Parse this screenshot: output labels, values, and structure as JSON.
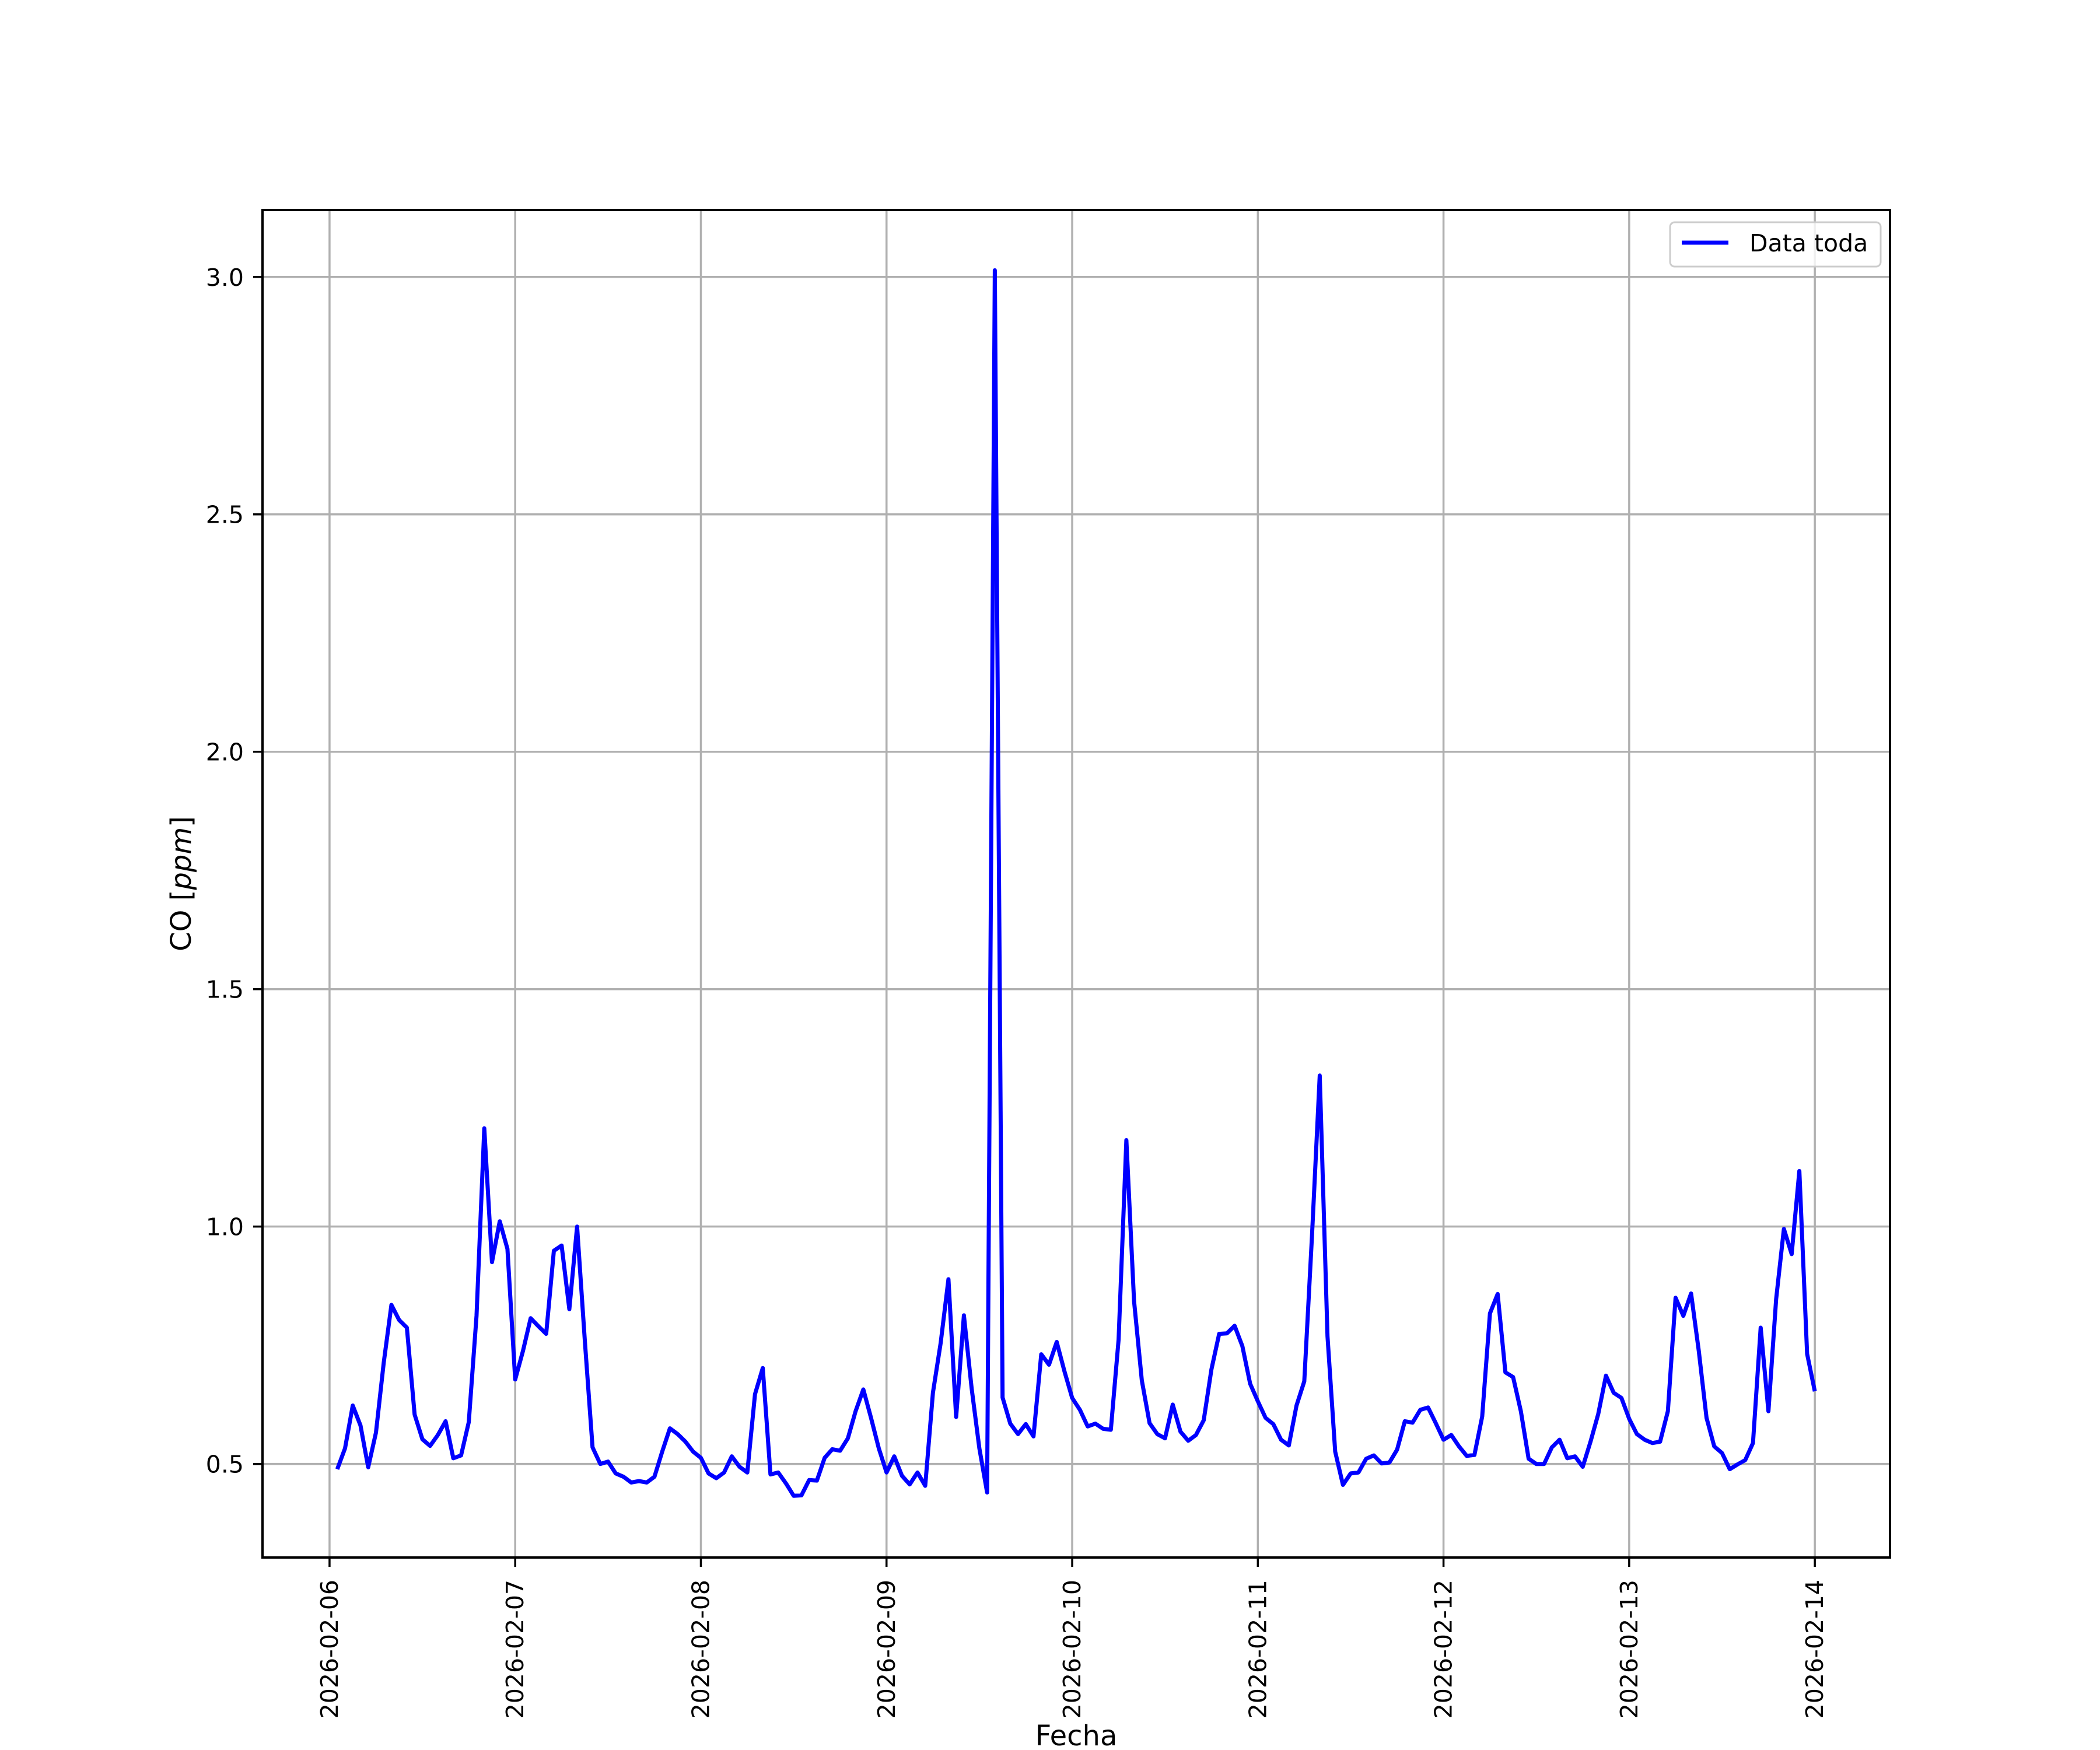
{
  "chart_data": {
    "type": "line",
    "title": "",
    "xlabel": "Fecha",
    "ylabel": "CO [ppm]",
    "ylabel_parts": {
      "plain": "CO [",
      "italic": "ppm",
      "close": "]"
    },
    "xlim": [
      "2026-02-05T15:20",
      "2026-02-14T09:43"
    ],
    "ylim": [
      0.303,
      3.141
    ],
    "grid": true,
    "legend_position": "top-right",
    "x_ticks": [
      "2026-02-06",
      "2026-02-07",
      "2026-02-08",
      "2026-02-09",
      "2026-02-10",
      "2026-02-11",
      "2026-02-12",
      "2026-02-13",
      "2026-02-14"
    ],
    "y_ticks": [
      0.5,
      1.0,
      1.5,
      2.0,
      2.5,
      3.0
    ],
    "y_tick_labels": [
      "0.5",
      "1.0",
      "1.5",
      "2.0",
      "2.5",
      "3.0"
    ],
    "series": [
      {
        "name": "Data toda",
        "color": "#0000ff",
        "x": [
          "2026-02-06T01:00",
          "2026-02-06T02:00",
          "2026-02-06T03:00",
          "2026-02-06T04:00",
          "2026-02-06T05:00",
          "2026-02-06T06:00",
          "2026-02-06T07:00",
          "2026-02-06T08:00",
          "2026-02-06T09:00",
          "2026-02-06T10:00",
          "2026-02-06T11:00",
          "2026-02-06T12:00",
          "2026-02-06T13:00",
          "2026-02-06T14:00",
          "2026-02-06T15:00",
          "2026-02-06T16:00",
          "2026-02-06T17:00",
          "2026-02-06T18:00",
          "2026-02-06T19:00",
          "2026-02-06T20:00",
          "2026-02-06T21:00",
          "2026-02-06T22:00",
          "2026-02-06T23:00",
          "2026-02-07T00:00",
          "2026-02-07T01:00",
          "2026-02-07T02:00",
          "2026-02-07T03:00",
          "2026-02-07T04:00",
          "2026-02-07T05:00",
          "2026-02-07T06:00",
          "2026-02-07T07:00",
          "2026-02-07T08:00",
          "2026-02-07T09:00",
          "2026-02-07T10:00",
          "2026-02-07T11:00",
          "2026-02-07T12:00",
          "2026-02-07T13:00",
          "2026-02-07T14:00",
          "2026-02-07T15:00",
          "2026-02-07T16:00",
          "2026-02-07T17:00",
          "2026-02-07T18:00",
          "2026-02-07T19:00",
          "2026-02-07T20:00",
          "2026-02-07T21:00",
          "2026-02-07T22:00",
          "2026-02-07T23:00",
          "2026-02-08T00:00",
          "2026-02-08T01:00",
          "2026-02-08T02:00",
          "2026-02-08T03:00",
          "2026-02-08T04:00",
          "2026-02-08T05:00",
          "2026-02-08T06:00",
          "2026-02-08T07:00",
          "2026-02-08T08:00",
          "2026-02-08T09:00",
          "2026-02-08T10:00",
          "2026-02-08T11:00",
          "2026-02-08T12:00",
          "2026-02-08T13:00",
          "2026-02-08T14:00",
          "2026-02-08T15:00",
          "2026-02-08T16:00",
          "2026-02-08T17:00",
          "2026-02-08T18:00",
          "2026-02-08T19:00",
          "2026-02-08T20:00",
          "2026-02-08T21:00",
          "2026-02-08T22:00",
          "2026-02-08T23:00",
          "2026-02-09T00:00",
          "2026-02-09T01:00",
          "2026-02-09T02:00",
          "2026-02-09T03:00",
          "2026-02-09T04:00",
          "2026-02-09T05:00",
          "2026-02-09T06:00",
          "2026-02-09T07:00",
          "2026-02-09T08:00",
          "2026-02-09T09:00",
          "2026-02-09T10:00",
          "2026-02-09T11:00",
          "2026-02-09T12:00",
          "2026-02-09T13:00",
          "2026-02-09T14:00",
          "2026-02-09T15:00",
          "2026-02-09T16:00",
          "2026-02-09T17:00",
          "2026-02-09T18:00",
          "2026-02-09T19:00",
          "2026-02-09T20:00",
          "2026-02-09T21:00",
          "2026-02-09T22:00",
          "2026-02-09T23:00",
          "2026-02-10T00:00",
          "2026-02-10T01:00",
          "2026-02-10T02:00",
          "2026-02-10T03:00",
          "2026-02-10T04:00",
          "2026-02-10T05:00",
          "2026-02-10T06:00",
          "2026-02-10T07:00",
          "2026-02-10T08:00",
          "2026-02-10T09:00",
          "2026-02-10T10:00",
          "2026-02-10T11:00",
          "2026-02-10T12:00",
          "2026-02-10T13:00",
          "2026-02-10T14:00",
          "2026-02-10T15:00",
          "2026-02-10T16:00",
          "2026-02-10T17:00",
          "2026-02-10T18:00",
          "2026-02-10T19:00",
          "2026-02-10T20:00",
          "2026-02-10T21:00",
          "2026-02-10T22:00",
          "2026-02-10T23:00",
          "2026-02-11T00:00",
          "2026-02-11T01:00",
          "2026-02-11T02:00",
          "2026-02-11T03:00",
          "2026-02-11T04:00",
          "2026-02-11T05:00",
          "2026-02-11T06:00",
          "2026-02-11T07:00",
          "2026-02-11T08:00",
          "2026-02-11T09:00",
          "2026-02-11T10:00",
          "2026-02-11T11:00",
          "2026-02-11T12:00",
          "2026-02-11T13:00",
          "2026-02-11T14:00",
          "2026-02-11T15:00",
          "2026-02-11T16:00",
          "2026-02-11T17:00",
          "2026-02-11T18:00",
          "2026-02-11T19:00",
          "2026-02-11T20:00",
          "2026-02-11T21:00",
          "2026-02-11T22:00",
          "2026-02-11T23:00",
          "2026-02-12T00:00",
          "2026-02-12T01:00",
          "2026-02-12T02:00",
          "2026-02-12T03:00",
          "2026-02-12T04:00",
          "2026-02-12T05:00",
          "2026-02-12T06:00",
          "2026-02-12T07:00",
          "2026-02-12T08:00",
          "2026-02-12T09:00",
          "2026-02-12T10:00",
          "2026-02-12T11:00",
          "2026-02-12T12:00",
          "2026-02-12T13:00",
          "2026-02-12T14:00",
          "2026-02-12T15:00",
          "2026-02-12T16:00",
          "2026-02-12T17:00",
          "2026-02-12T18:00",
          "2026-02-12T19:00",
          "2026-02-12T20:00",
          "2026-02-12T21:00",
          "2026-02-12T22:00",
          "2026-02-12T23:00",
          "2026-02-13T00:00",
          "2026-02-13T01:00",
          "2026-02-13T02:00",
          "2026-02-13T03:00",
          "2026-02-13T04:00",
          "2026-02-13T05:00",
          "2026-02-13T06:00",
          "2026-02-13T07:00",
          "2026-02-13T08:00",
          "2026-02-13T09:00",
          "2026-02-13T10:00",
          "2026-02-13T11:00",
          "2026-02-13T12:00",
          "2026-02-13T13:00",
          "2026-02-13T14:00",
          "2026-02-13T15:00",
          "2026-02-13T16:00",
          "2026-02-13T17:00",
          "2026-02-13T18:00",
          "2026-02-13T19:00",
          "2026-02-13T20:00",
          "2026-02-13T21:00",
          "2026-02-13T22:00",
          "2026-02-13T23:00",
          "2026-02-14T00:00"
        ],
        "values": [
          0.489,
          0.533,
          0.623,
          0.581,
          0.493,
          0.566,
          0.713,
          0.835,
          0.803,
          0.787,
          0.604,
          0.552,
          0.538,
          0.561,
          0.59,
          0.512,
          0.518,
          0.588,
          0.812,
          1.207,
          0.925,
          1.011,
          0.953,
          0.678,
          0.738,
          0.807,
          0.79,
          0.774,
          0.949,
          0.96,
          0.826,
          1.0,
          0.759,
          0.535,
          0.5,
          0.505,
          0.48,
          0.473,
          0.461,
          0.464,
          0.461,
          0.473,
          0.526,
          0.575,
          0.563,
          0.547,
          0.526,
          0.513,
          0.48,
          0.47,
          0.482,
          0.516,
          0.494,
          0.482,
          0.647,
          0.702,
          0.478,
          0.482,
          0.459,
          0.433,
          0.434,
          0.466,
          0.465,
          0.513,
          0.531,
          0.528,
          0.554,
          0.611,
          0.657,
          0.597,
          0.533,
          0.482,
          0.516,
          0.475,
          0.457,
          0.482,
          0.454,
          0.65,
          0.755,
          0.889,
          0.599,
          0.813,
          0.66,
          0.533,
          0.44,
          3.014,
          0.64,
          0.585,
          0.563,
          0.584,
          0.558,
          0.731,
          0.709,
          0.757,
          0.695,
          0.639,
          0.614,
          0.579,
          0.585,
          0.574,
          0.572,
          0.762,
          1.182,
          0.843,
          0.676,
          0.586,
          0.563,
          0.554,
          0.625,
          0.568,
          0.549,
          0.561,
          0.592,
          0.699,
          0.774,
          0.775,
          0.791,
          0.748,
          0.669,
          0.632,
          0.597,
          0.584,
          0.551,
          0.539,
          0.623,
          0.674,
          0.98,
          1.318,
          0.769,
          0.526,
          0.456,
          0.48,
          0.482,
          0.511,
          0.518,
          0.501,
          0.503,
          0.53,
          0.59,
          0.587,
          0.614,
          0.619,
          0.586,
          0.551,
          0.561,
          0.537,
          0.517,
          0.519,
          0.6,
          0.817,
          0.858,
          0.693,
          0.683,
          0.611,
          0.511,
          0.5,
          0.5,
          0.535,
          0.551,
          0.512,
          0.516,
          0.494,
          0.547,
          0.605,
          0.686,
          0.65,
          0.639,
          0.595,
          0.563,
          0.551,
          0.544,
          0.547,
          0.611,
          0.85,
          0.812,
          0.859,
          0.738,
          0.597,
          0.537,
          0.523,
          0.489,
          0.499,
          0.508,
          0.544,
          0.787,
          0.611,
          0.847,
          0.995,
          0.942,
          1.117,
          0.732,
          0.653
        ]
      }
    ]
  }
}
